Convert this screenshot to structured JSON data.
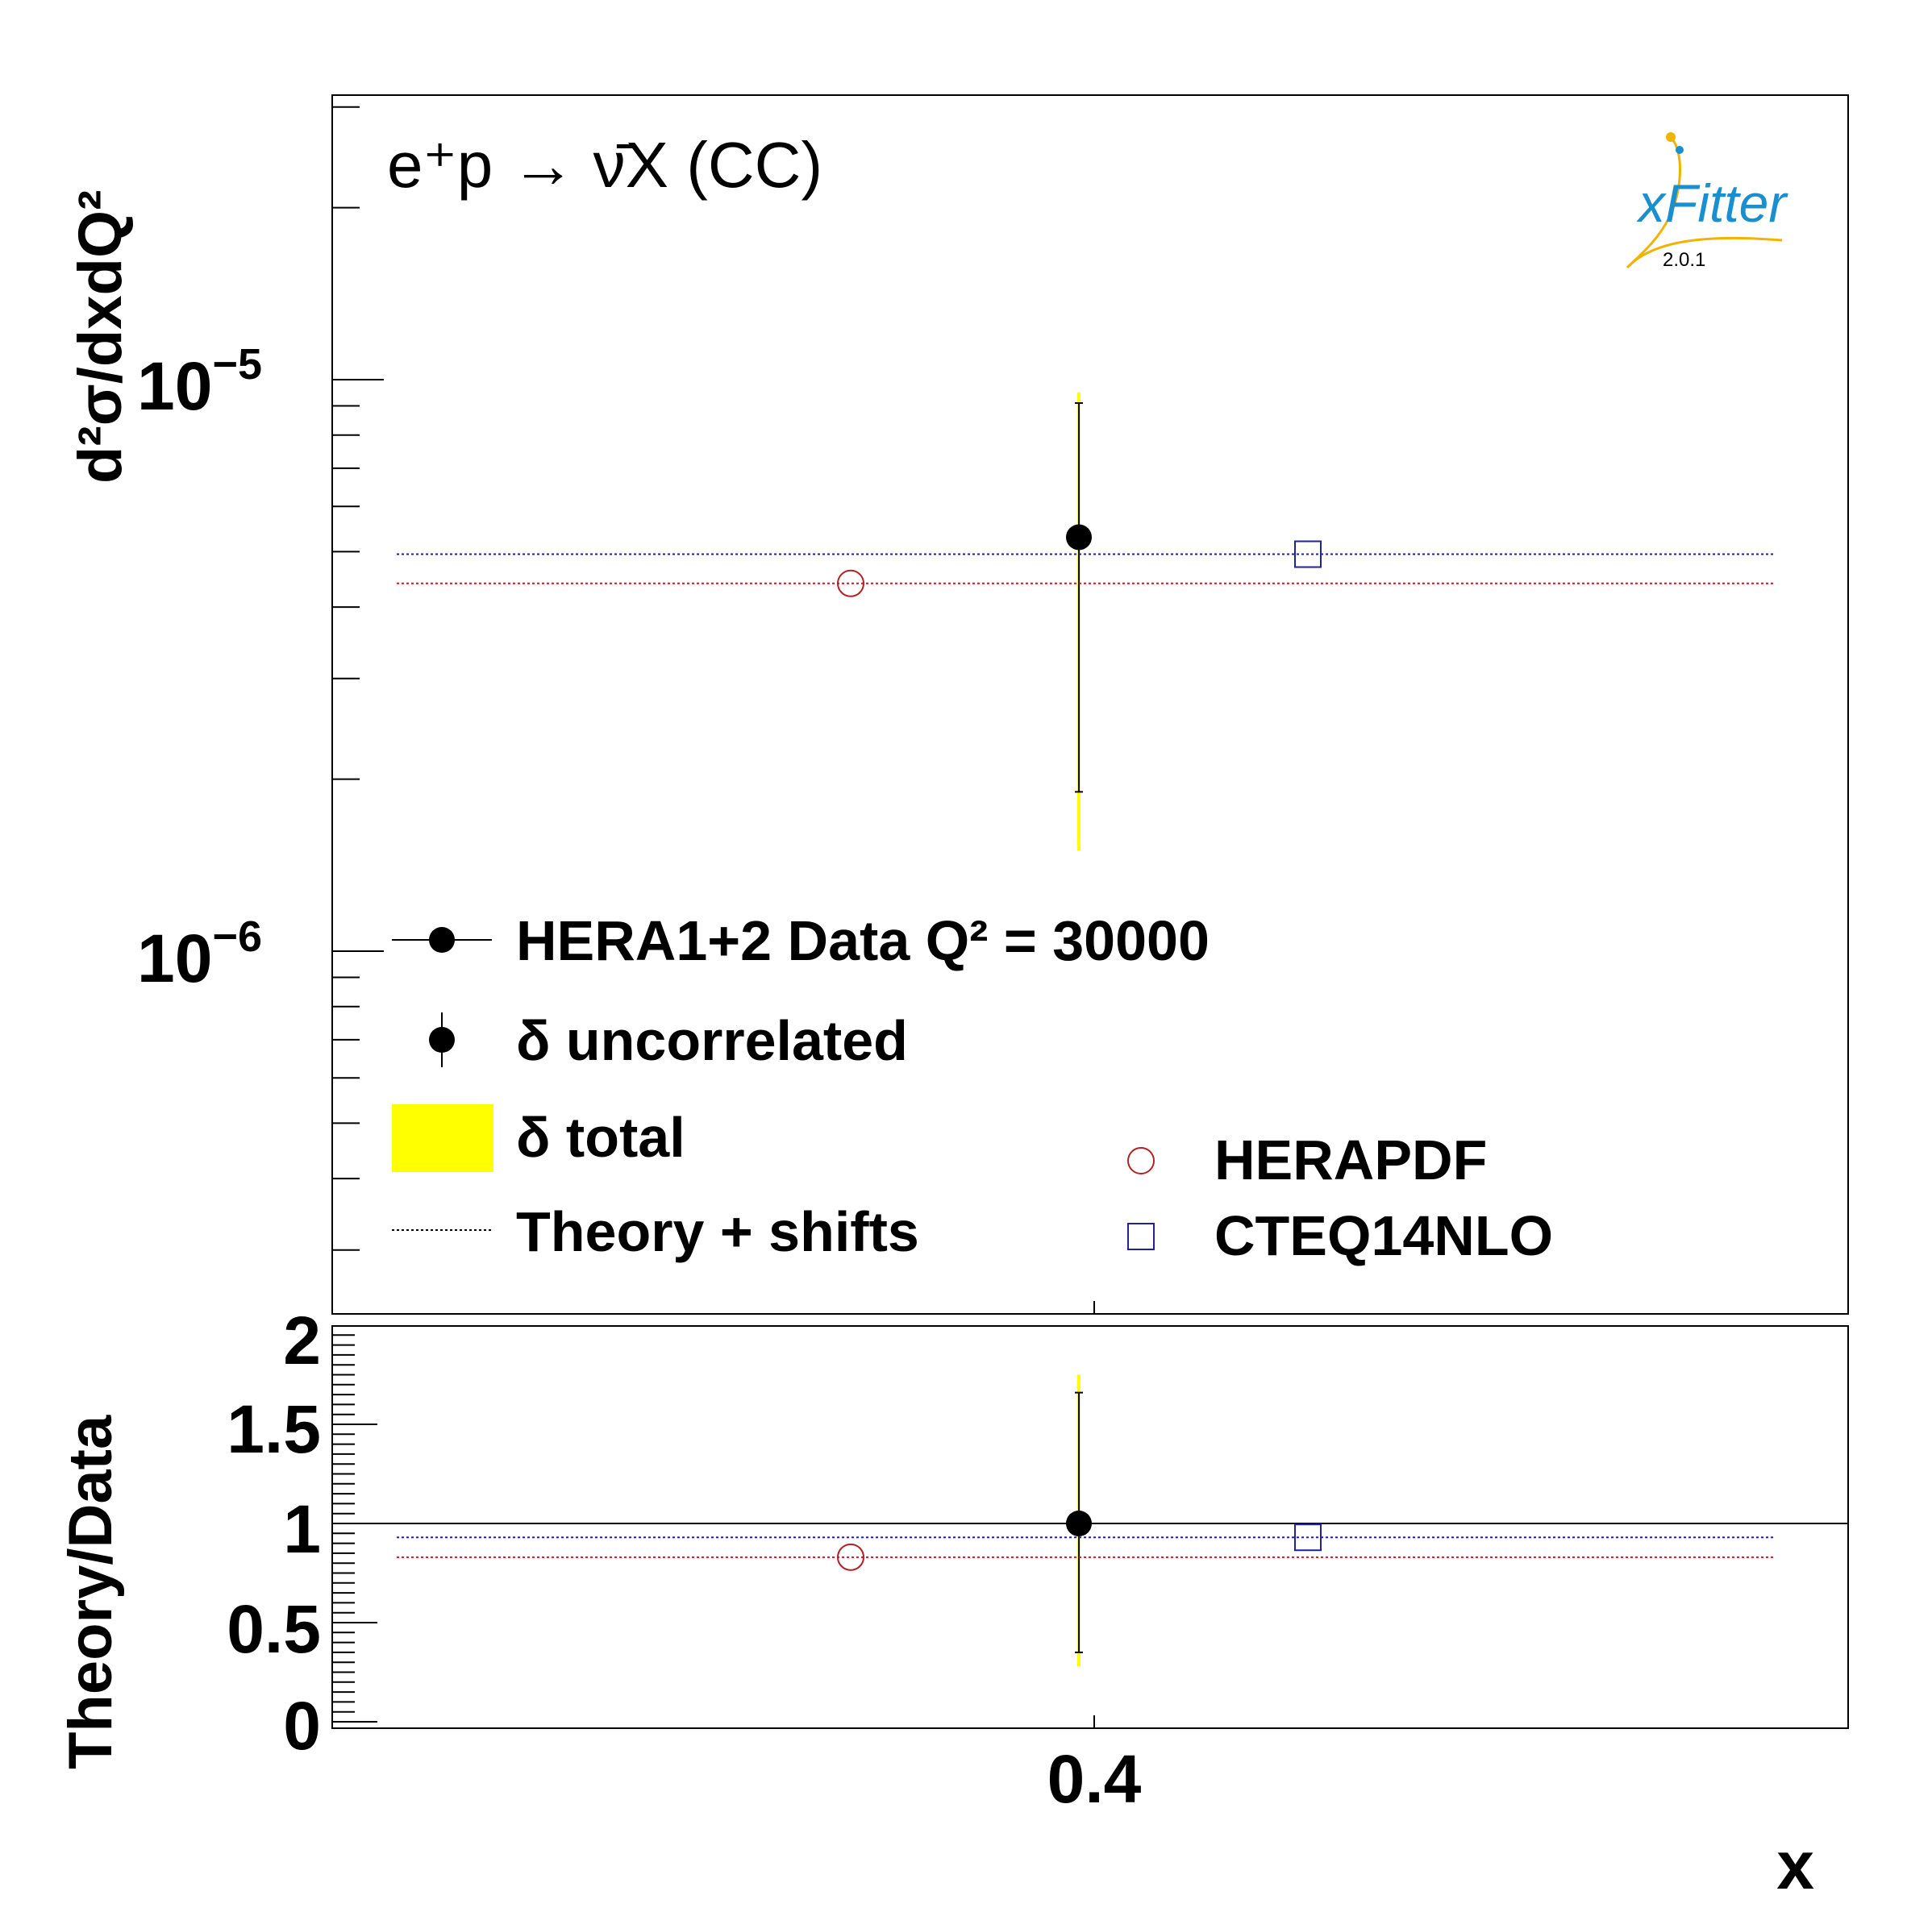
{
  "chart_data": [
    {
      "panel": "upper",
      "type": "scatter",
      "process_label": "e⁺p → ν̄X (CC)",
      "ylabel": "d²σ/dxdQ²",
      "yscale": "log",
      "ylim": [
        3e-07,
        3e-05
      ],
      "yticks": [
        {
          "value": 1e-05,
          "base": "10",
          "exp": "−5"
        },
        {
          "value": 1e-06,
          "base": "10",
          "exp": "−6"
        }
      ],
      "data": {
        "name": "HERA1+2 Data Q² = 30000",
        "x": 0.4,
        "y": 5.3e-06,
        "uncorrelated": [
          1.9e-06,
          9.1e-06
        ],
        "total": [
          1.5e-06,
          9.5e-06
        ]
      },
      "theory": [
        {
          "name": "HERAPDF",
          "y": 4.4e-06,
          "color": "#b22222",
          "marker": "open-circle"
        },
        {
          "name": "CTEQ14NLO",
          "y": 4.95e-06,
          "color": "#2020a0",
          "marker": "open-square"
        }
      ]
    },
    {
      "panel": "lower",
      "type": "scatter",
      "ylabel": "Theory/Data",
      "xlabel": "x",
      "ylim": [
        0,
        2.05
      ],
      "yticks": [
        "0",
        "0.5",
        "1",
        "1.5",
        "2"
      ],
      "xticks": [
        "0.4"
      ],
      "data": {
        "x": 0.4,
        "y": 1.0,
        "uncorrelated": [
          0.35,
          1.66
        ],
        "total": [
          0.28,
          1.75
        ]
      },
      "theory": [
        {
          "name": "HERAPDF",
          "y": 0.83,
          "color": "#b22222",
          "marker": "open-circle"
        },
        {
          "name": "CTEQ14NLO",
          "y": 0.93,
          "color": "#2020a0",
          "marker": "open-square"
        }
      ]
    }
  ],
  "legend": {
    "data": "HERA1+2 Data Q² = 30000",
    "uncorrelated": "δ uncorrelated",
    "total": "δ total",
    "theory": "Theory + shifts",
    "herapdf": "HERAPDF",
    "cteq": "CTEQ14NLO"
  },
  "logo": {
    "name": "xFitter",
    "version": "2.0.1"
  },
  "colors": {
    "total_band": "#ffff00",
    "data": "#000000",
    "herapdf": "#b22222",
    "cteq": "#2020a0",
    "logo": "#1a8fd0",
    "logo_accent": "#f0b400"
  }
}
